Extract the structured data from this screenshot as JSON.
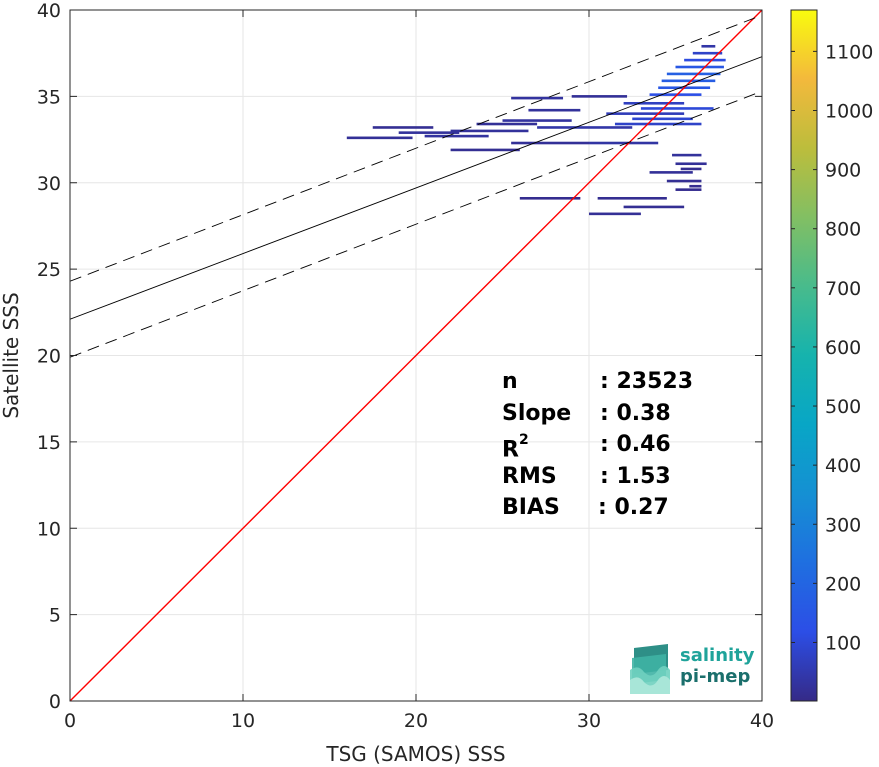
{
  "chart_data": {
    "type": "heatmap",
    "title": "",
    "xlabel": "TSG (SAMOS) SSS",
    "ylabel": "Satellite SSS",
    "xlim": [
      0,
      40
    ],
    "ylim": [
      0,
      40
    ],
    "x_ticks": [
      "0",
      "10",
      "20",
      "30",
      "40"
    ],
    "y_ticks": [
      "0",
      "5",
      "10",
      "15",
      "20",
      "25",
      "30",
      "35",
      "40"
    ],
    "grid": true,
    "colorbar": {
      "range": [
        1,
        1170
      ],
      "ticks": [
        "100",
        "200",
        "300",
        "400",
        "500",
        "600",
        "700",
        "800",
        "900",
        "1000",
        "1100"
      ],
      "colormap": "parula"
    },
    "one_to_one_line": {
      "color": "#ff0000",
      "from": [
        0,
        0
      ],
      "to": [
        40,
        40
      ]
    },
    "fit_line": {
      "color": "#000000",
      "intercept": 22.1,
      "slope": 0.38
    },
    "fit_bounds": [
      {
        "intercept": 24.3,
        "slope": 0.385,
        "style": "dashed"
      },
      {
        "intercept": 19.9,
        "slope": 0.385,
        "style": "dashed"
      }
    ],
    "density_segments": [
      {
        "x0": 16.0,
        "x1": 19.8,
        "y": 32.6,
        "count": 20
      },
      {
        "x0": 17.5,
        "x1": 21.0,
        "y": 33.2,
        "count": 15
      },
      {
        "x0": 19.0,
        "x1": 22.5,
        "y": 32.9,
        "count": 25
      },
      {
        "x0": 20.5,
        "x1": 24.2,
        "y": 32.7,
        "count": 30
      },
      {
        "x0": 22.0,
        "x1": 26.5,
        "y": 33.0,
        "count": 25
      },
      {
        "x0": 23.5,
        "x1": 27.0,
        "y": 33.4,
        "count": 20
      },
      {
        "x0": 25.0,
        "x1": 29.0,
        "y": 33.6,
        "count": 30
      },
      {
        "x0": 26.5,
        "x1": 29.5,
        "y": 34.2,
        "count": 25
      },
      {
        "x0": 25.5,
        "x1": 28.5,
        "y": 34.9,
        "count": 30
      },
      {
        "x0": 29.0,
        "x1": 32.2,
        "y": 35.0,
        "count": 20
      },
      {
        "x0": 22.0,
        "x1": 26.0,
        "y": 31.9,
        "count": 15
      },
      {
        "x0": 25.5,
        "x1": 30.0,
        "y": 32.3,
        "count": 20
      },
      {
        "x0": 30.0,
        "x1": 34.0,
        "y": 32.3,
        "count": 35
      },
      {
        "x0": 27.0,
        "x1": 32.5,
        "y": 33.2,
        "count": 40
      },
      {
        "x0": 31.0,
        "x1": 35.5,
        "y": 34.0,
        "count": 60
      },
      {
        "x0": 31.5,
        "x1": 36.5,
        "y": 33.4,
        "count": 80
      },
      {
        "x0": 32.0,
        "x1": 35.5,
        "y": 34.6,
        "count": 70
      },
      {
        "x0": 32.5,
        "x1": 36.0,
        "y": 33.7,
        "count": 90
      },
      {
        "x0": 33.0,
        "x1": 37.2,
        "y": 34.3,
        "count": 100
      },
      {
        "x0": 33.5,
        "x1": 36.5,
        "y": 35.1,
        "count": 120
      },
      {
        "x0": 34.0,
        "x1": 37.0,
        "y": 35.5,
        "count": 150
      },
      {
        "x0": 34.2,
        "x1": 37.3,
        "y": 35.9,
        "count": 170
      },
      {
        "x0": 34.5,
        "x1": 37.6,
        "y": 36.3,
        "count": 180
      },
      {
        "x0": 35.0,
        "x1": 37.8,
        "y": 36.7,
        "count": 150
      },
      {
        "x0": 35.5,
        "x1": 37.9,
        "y": 37.1,
        "count": 110
      },
      {
        "x0": 36.0,
        "x1": 37.7,
        "y": 37.5,
        "count": 80
      },
      {
        "x0": 36.5,
        "x1": 37.3,
        "y": 37.9,
        "count": 40
      },
      {
        "x0": 34.8,
        "x1": 36.5,
        "y": 31.6,
        "count": 25
      },
      {
        "x0": 35.0,
        "x1": 36.8,
        "y": 31.1,
        "count": 20
      },
      {
        "x0": 33.5,
        "x1": 36.0,
        "y": 30.6,
        "count": 20
      },
      {
        "x0": 34.5,
        "x1": 36.5,
        "y": 30.1,
        "count": 15
      },
      {
        "x0": 35.0,
        "x1": 36.5,
        "y": 29.6,
        "count": 10
      },
      {
        "x0": 26.0,
        "x1": 29.5,
        "y": 29.1,
        "count": 10
      },
      {
        "x0": 30.5,
        "x1": 34.5,
        "y": 29.1,
        "count": 12
      },
      {
        "x0": 32.0,
        "x1": 35.5,
        "y": 28.6,
        "count": 15
      },
      {
        "x0": 30.0,
        "x1": 33.0,
        "y": 28.2,
        "count": 18
      },
      {
        "x0": 35.3,
        "x1": 36.5,
        "y": 30.8,
        "count": 10
      },
      {
        "x0": 35.8,
        "x1": 36.5,
        "y": 29.8,
        "count": 10
      }
    ]
  },
  "stats": [
    {
      "key": "n",
      "sup": "",
      "value": ": 23523"
    },
    {
      "key": "Slope",
      "sup": "",
      "value": ": 0.38"
    },
    {
      "key": "R",
      "sup": "2",
      "value": ": 0.46"
    },
    {
      "key": "RMS",
      "sup": "",
      "value": ": 1.53"
    },
    {
      "key": "BIAS",
      "sup": "",
      "value": ": 0.27"
    }
  ],
  "logo": {
    "line1": "salinity",
    "line2": "pi-mep"
  }
}
